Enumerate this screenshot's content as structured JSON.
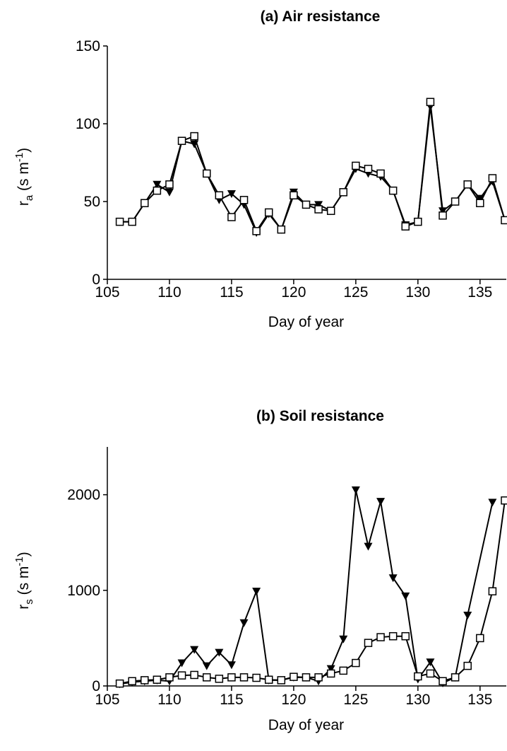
{
  "chart_data": [
    {
      "type": "line",
      "title": "(a) Air resistance",
      "xlabel": "Day of year",
      "ylabel": [
        "r",
        "a",
        " (s m",
        "-1",
        ")"
      ],
      "x": [
        106,
        107,
        108,
        109,
        110,
        111,
        112,
        113,
        114,
        115,
        116,
        117,
        118,
        119,
        120,
        121,
        122,
        123,
        124,
        125,
        126,
        127,
        128,
        129,
        130,
        131,
        132,
        133,
        134,
        135,
        136,
        137
      ],
      "xlim": [
        105,
        137
      ],
      "xticks": [
        105,
        110,
        115,
        120,
        125,
        130,
        135
      ],
      "ylim": [
        0,
        150
      ],
      "yticks": [
        0,
        50,
        100,
        150
      ],
      "series": [
        {
          "color": "#000000",
          "marker": "triangle-down",
          "values": [
            37,
            37,
            49,
            61,
            56,
            89,
            87,
            68,
            51,
            55,
            48,
            30,
            42,
            32,
            56,
            48,
            48,
            44,
            56,
            71,
            68,
            66,
            57,
            35,
            37,
            111,
            44,
            50,
            61,
            52,
            63,
            38
          ]
        },
        {
          "color": "#000000",
          "marker": "square-open",
          "values": [
            37,
            37,
            49,
            57,
            61,
            89,
            92,
            68,
            54,
            40,
            51,
            31,
            43,
            32,
            54,
            48,
            45,
            44,
            56,
            73,
            71,
            68,
            57,
            34,
            37,
            114,
            41,
            50,
            61,
            49,
            65,
            38
          ]
        }
      ]
    },
    {
      "type": "line",
      "title": "(b) Soil resistance",
      "xlabel": "Day of year",
      "ylabel": [
        "r",
        "s",
        " (s m",
        "-1",
        ")"
      ],
      "x": [
        106,
        107,
        108,
        109,
        110,
        111,
        112,
        113,
        114,
        115,
        116,
        117,
        118,
        119,
        120,
        121,
        122,
        123,
        124,
        125,
        126,
        127,
        128,
        129,
        130,
        131,
        132,
        133,
        134,
        135,
        136,
        137
      ],
      "xlim": [
        105,
        137
      ],
      "xticks": [
        105,
        110,
        115,
        120,
        125,
        130,
        135
      ],
      "ylim": [
        0,
        2500
      ],
      "yticks": [
        0,
        1000,
        2000
      ],
      "series": [
        {
          "color": "#000000",
          "marker": "triangle-down",
          "x": [
            106,
            107,
            108,
            109,
            110,
            111,
            112,
            113,
            114,
            115,
            116,
            117,
            118,
            119,
            120,
            121,
            122,
            123,
            124,
            125,
            126,
            127,
            128,
            129,
            130,
            131,
            132,
            133,
            134,
            136
          ],
          "values": [
            20,
            40,
            50,
            60,
            50,
            240,
            380,
            210,
            350,
            220,
            660,
            990,
            60,
            60,
            90,
            90,
            50,
            180,
            490,
            2050,
            1460,
            1930,
            1130,
            940,
            70,
            250,
            30,
            90,
            740,
            1920
          ]
        },
        {
          "color": "#000000",
          "marker": "square-open",
          "values": [
            25,
            50,
            60,
            65,
            90,
            110,
            115,
            90,
            75,
            90,
            90,
            85,
            65,
            60,
            95,
            90,
            90,
            130,
            160,
            240,
            450,
            510,
            520,
            520,
            100,
            130,
            50,
            90,
            210,
            500,
            990,
            1940
          ]
        }
      ]
    }
  ]
}
